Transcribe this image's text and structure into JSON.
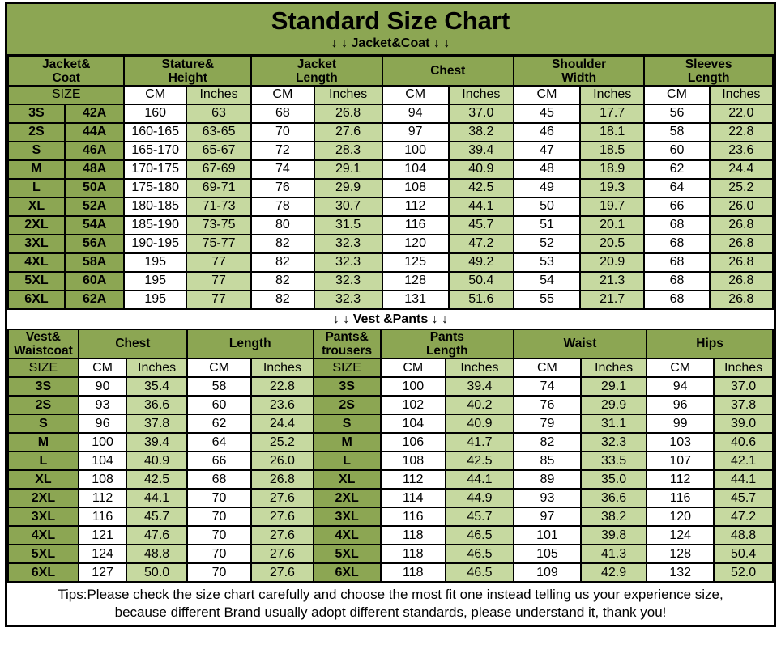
{
  "title": "Standard Size Chart",
  "jacket_section_label": "↓ ↓  Jacket&Coat ↓ ↓",
  "vest_section_label": "↓ ↓  Vest &Pants ↓ ↓",
  "colors": {
    "header_green": "#8CA653",
    "light_green": "#C6D9A0",
    "border_black": "#000000",
    "background_white": "#FFFFFF"
  },
  "jacket_table": {
    "groups": [
      {
        "label": "Jacket&\nCoat",
        "span": 2
      },
      {
        "label": "Stature&\nHeight",
        "span": 2
      },
      {
        "label": "Jacket\nLength",
        "span": 2
      },
      {
        "label": "Chest",
        "span": 2
      },
      {
        "label": "Shoulder\nWidth",
        "span": 2
      },
      {
        "label": "Sleeves\nLength",
        "span": 2
      }
    ],
    "size_label": "SIZE",
    "cm_label": "CM",
    "inches_label": "Inches",
    "rows": [
      {
        "size": "3S",
        "code": "42A",
        "values": [
          "160",
          "63",
          "68",
          "26.8",
          "94",
          "37.0",
          "45",
          "17.7",
          "56",
          "22.0"
        ]
      },
      {
        "size": "2S",
        "code": "44A",
        "values": [
          "160-165",
          "63-65",
          "70",
          "27.6",
          "97",
          "38.2",
          "46",
          "18.1",
          "58",
          "22.8"
        ]
      },
      {
        "size": "S",
        "code": "46A",
        "values": [
          "165-170",
          "65-67",
          "72",
          "28.3",
          "100",
          "39.4",
          "47",
          "18.5",
          "60",
          "23.6"
        ]
      },
      {
        "size": "M",
        "code": "48A",
        "values": [
          "170-175",
          "67-69",
          "74",
          "29.1",
          "104",
          "40.9",
          "48",
          "18.9",
          "62",
          "24.4"
        ]
      },
      {
        "size": "L",
        "code": "50A",
        "values": [
          "175-180",
          "69-71",
          "76",
          "29.9",
          "108",
          "42.5",
          "49",
          "19.3",
          "64",
          "25.2"
        ]
      },
      {
        "size": "XL",
        "code": "52A",
        "values": [
          "180-185",
          "71-73",
          "78",
          "30.7",
          "112",
          "44.1",
          "50",
          "19.7",
          "66",
          "26.0"
        ]
      },
      {
        "size": "2XL",
        "code": "54A",
        "values": [
          "185-190",
          "73-75",
          "80",
          "31.5",
          "116",
          "45.7",
          "51",
          "20.1",
          "68",
          "26.8"
        ]
      },
      {
        "size": "3XL",
        "code": "56A",
        "values": [
          "190-195",
          "75-77",
          "82",
          "32.3",
          "120",
          "47.2",
          "52",
          "20.5",
          "68",
          "26.8"
        ]
      },
      {
        "size": "4XL",
        "code": "58A",
        "values": [
          "195",
          "77",
          "82",
          "32.3",
          "125",
          "49.2",
          "53",
          "20.9",
          "68",
          "26.8"
        ]
      },
      {
        "size": "5XL",
        "code": "60A",
        "values": [
          "195",
          "77",
          "82",
          "32.3",
          "128",
          "50.4",
          "54",
          "21.3",
          "68",
          "26.8"
        ]
      },
      {
        "size": "6XL",
        "code": "62A",
        "values": [
          "195",
          "77",
          "82",
          "32.3",
          "131",
          "51.6",
          "55",
          "21.7",
          "68",
          "26.8"
        ]
      }
    ]
  },
  "vest_pants_table": {
    "groups": [
      {
        "label": "Vest&\nWaistcoat",
        "span": 1
      },
      {
        "label": "Chest",
        "span": 2
      },
      {
        "label": "Length",
        "span": 2
      },
      {
        "label": "Pants&\ntrousers",
        "span": 1
      },
      {
        "label": "Pants\nLength",
        "span": 2
      },
      {
        "label": "Waist",
        "span": 2
      },
      {
        "label": "Hips",
        "span": 2
      }
    ],
    "size_label": "SIZE",
    "cm_label": "CM",
    "inches_label": "Inches",
    "rows": [
      {
        "size": "3S",
        "vest_values": [
          "90",
          "35.4",
          "58",
          "22.8"
        ],
        "pants_size": "3S",
        "pants_values": [
          "100",
          "39.4",
          "74",
          "29.1",
          "94",
          "37.0"
        ]
      },
      {
        "size": "2S",
        "vest_values": [
          "93",
          "36.6",
          "60",
          "23.6"
        ],
        "pants_size": "2S",
        "pants_values": [
          "102",
          "40.2",
          "76",
          "29.9",
          "96",
          "37.8"
        ]
      },
      {
        "size": "S",
        "vest_values": [
          "96",
          "37.8",
          "62",
          "24.4"
        ],
        "pants_size": "S",
        "pants_values": [
          "104",
          "40.9",
          "79",
          "31.1",
          "99",
          "39.0"
        ]
      },
      {
        "size": "M",
        "vest_values": [
          "100",
          "39.4",
          "64",
          "25.2"
        ],
        "pants_size": "M",
        "pants_values": [
          "106",
          "41.7",
          "82",
          "32.3",
          "103",
          "40.6"
        ]
      },
      {
        "size": "L",
        "vest_values": [
          "104",
          "40.9",
          "66",
          "26.0"
        ],
        "pants_size": "L",
        "pants_values": [
          "108",
          "42.5",
          "85",
          "33.5",
          "107",
          "42.1"
        ]
      },
      {
        "size": "XL",
        "vest_values": [
          "108",
          "42.5",
          "68",
          "26.8"
        ],
        "pants_size": "XL",
        "pants_values": [
          "112",
          "44.1",
          "89",
          "35.0",
          "112",
          "44.1"
        ]
      },
      {
        "size": "2XL",
        "vest_values": [
          "112",
          "44.1",
          "70",
          "27.6"
        ],
        "pants_size": "2XL",
        "pants_values": [
          "114",
          "44.9",
          "93",
          "36.6",
          "116",
          "45.7"
        ]
      },
      {
        "size": "3XL",
        "vest_values": [
          "116",
          "45.7",
          "70",
          "27.6"
        ],
        "pants_size": "3XL",
        "pants_values": [
          "116",
          "45.7",
          "97",
          "38.2",
          "120",
          "47.2"
        ]
      },
      {
        "size": "4XL",
        "vest_values": [
          "121",
          "47.6",
          "70",
          "27.6"
        ],
        "pants_size": "4XL",
        "pants_values": [
          "118",
          "46.5",
          "101",
          "39.8",
          "124",
          "48.8"
        ]
      },
      {
        "size": "5XL",
        "vest_values": [
          "124",
          "48.8",
          "70",
          "27.6"
        ],
        "pants_size": "5XL",
        "pants_values": [
          "118",
          "46.5",
          "105",
          "41.3",
          "128",
          "50.4"
        ]
      },
      {
        "size": "6XL",
        "vest_values": [
          "127",
          "50.0",
          "70",
          "27.6"
        ],
        "pants_size": "6XL",
        "pants_values": [
          "118",
          "46.5",
          "109",
          "42.9",
          "132",
          "52.0"
        ]
      }
    ]
  },
  "tips": {
    "line1": "Tips:Please check the size chart carefully and choose the most fit one instead telling us your experience size,",
    "line2": "because different Brand usually adopt different standards, please understand it, thank you!"
  }
}
